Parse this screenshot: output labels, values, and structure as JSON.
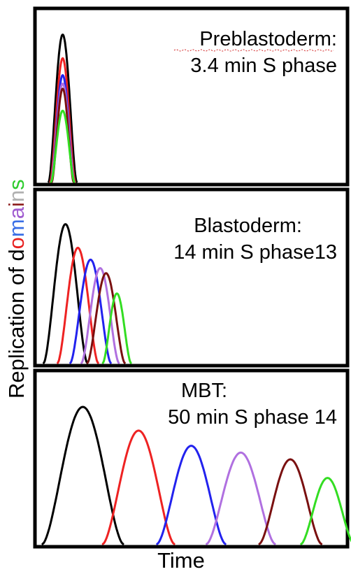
{
  "y_axis": {
    "prefix": "Replication of d",
    "colored_letters": [
      {
        "letter": "o",
        "color": "#e8201f"
      },
      {
        "letter": "m",
        "color": "#3a6fe6"
      },
      {
        "letter": "a",
        "color": "#a05cd0"
      },
      {
        "letter": "i",
        "color": "#8a1a1a"
      },
      {
        "letter": "n",
        "color": "#b0b0b0"
      },
      {
        "letter": "s",
        "color": "#2ecc2e"
      }
    ]
  },
  "x_axis": {
    "label": "Time"
  },
  "series_colors": [
    "#000000",
    "#ee2222",
    "#2222ee",
    "#b070e0",
    "#7a1010",
    "#33dd22"
  ],
  "panels": [
    {
      "id": "preblastoderm",
      "title_line1": "Preblastoderm:",
      "title_line2": "3.4 min S phase",
      "peaks": [
        {
          "center": 0.085,
          "width": 0.09,
          "height": 0.87
        },
        {
          "center": 0.085,
          "width": 0.08,
          "height": 0.73
        },
        {
          "center": 0.085,
          "width": 0.075,
          "height": 0.63
        },
        {
          "center": 0.085,
          "width": 0.075,
          "height": 0.58
        },
        {
          "center": 0.085,
          "width": 0.07,
          "height": 0.55
        },
        {
          "center": 0.085,
          "width": 0.075,
          "height": 0.42
        }
      ]
    },
    {
      "id": "blastoderm",
      "title_line1": "Blastoderm:",
      "title_line2": "14 min S phase13",
      "peaks": [
        {
          "center": 0.094,
          "width": 0.14,
          "height": 0.82
        },
        {
          "center": 0.134,
          "width": 0.13,
          "height": 0.68
        },
        {
          "center": 0.175,
          "width": 0.13,
          "height": 0.61
        },
        {
          "center": 0.206,
          "width": 0.12,
          "height": 0.56
        },
        {
          "center": 0.225,
          "width": 0.12,
          "height": 0.53
        },
        {
          "center": 0.26,
          "width": 0.09,
          "height": 0.41
        }
      ]
    },
    {
      "id": "mbt",
      "title_line1": "MBT:",
      "title_line2": "50 min S phase 14",
      "peaks": [
        {
          "center": 0.15,
          "width": 0.26,
          "height": 0.81
        },
        {
          "center": 0.33,
          "width": 0.23,
          "height": 0.67
        },
        {
          "center": 0.5,
          "width": 0.22,
          "height": 0.58
        },
        {
          "center": 0.66,
          "width": 0.22,
          "height": 0.54
        },
        {
          "center": 0.82,
          "width": 0.2,
          "height": 0.5
        },
        {
          "center": 0.94,
          "width": 0.17,
          "height": 0.39
        }
      ]
    }
  ]
}
